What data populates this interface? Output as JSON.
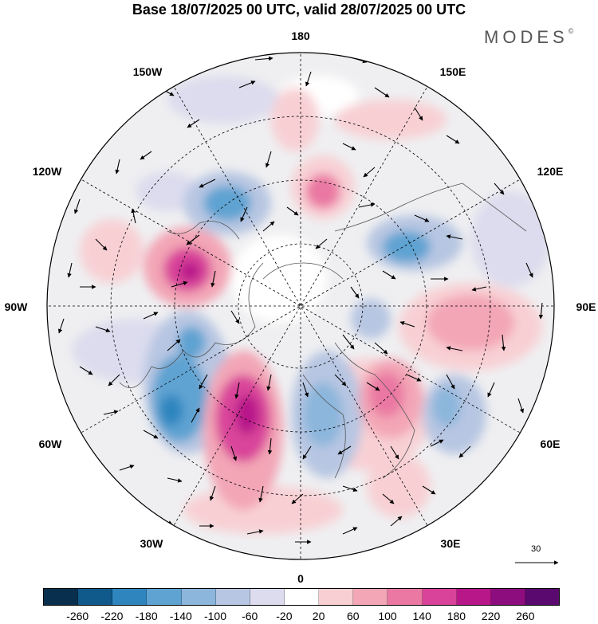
{
  "title": "Base 18/07/2025 00 UTC, valid 28/07/2025 00 UTC",
  "logo": {
    "text": "MODES",
    "mark": "©"
  },
  "longitude_labels": [
    "180",
    "150E",
    "120E",
    "90E",
    "60E",
    "30E",
    "0",
    "30W",
    "60W",
    "90W",
    "120W",
    "150W"
  ],
  "reference_vector": {
    "value": "30"
  },
  "colorbar": {
    "colors": [
      "#08304e",
      "#0f5a8a",
      "#2f86bf",
      "#5fa3d2",
      "#8cb6dc",
      "#b7c6e2",
      "#dcdcee",
      "#ffffff",
      "#f8d0d4",
      "#f3a6b6",
      "#ea78a2",
      "#d9449a",
      "#b8178a",
      "#8d0d7e",
      "#5a0a6e"
    ],
    "ticks": [
      "-260",
      "-220",
      "-180",
      "-140",
      "-100",
      "-60",
      "-20",
      "20",
      "60",
      "100",
      "140",
      "180",
      "220",
      "260"
    ]
  }
}
